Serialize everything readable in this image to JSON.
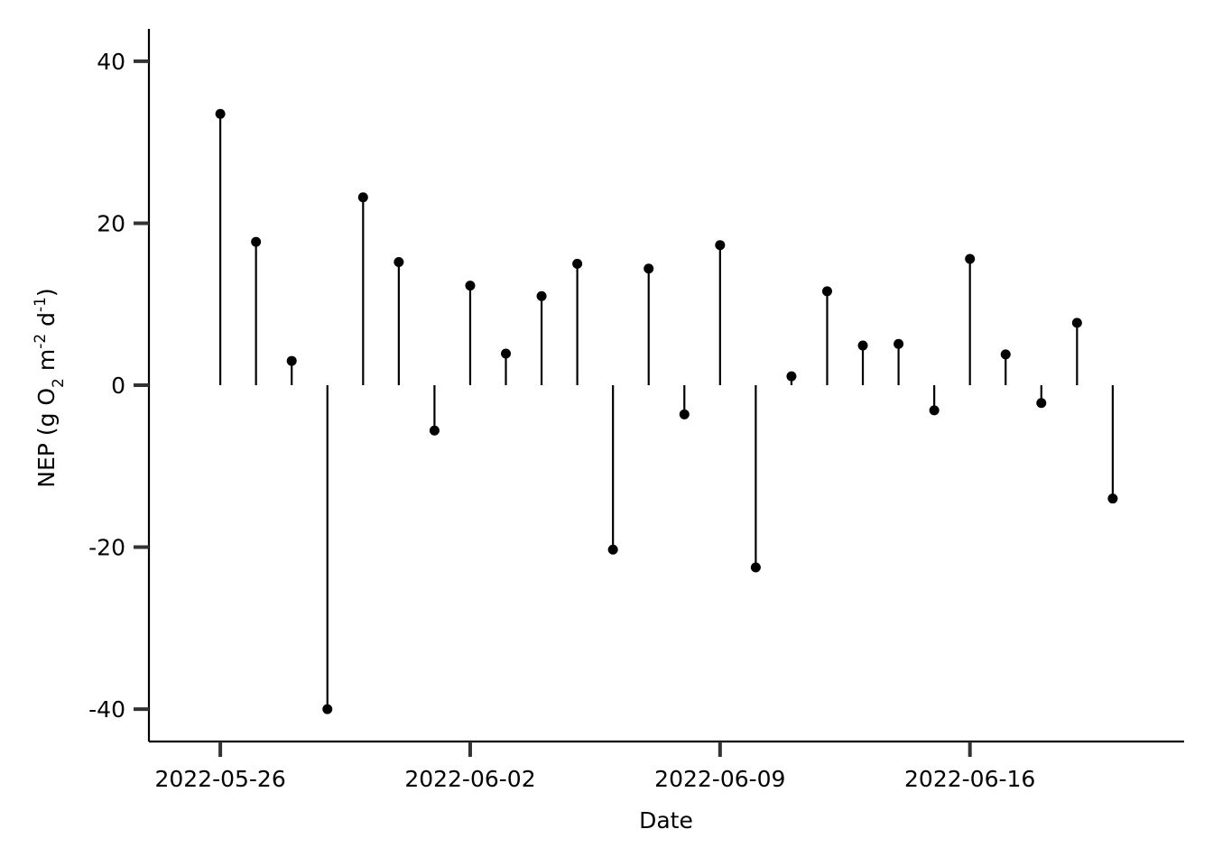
{
  "chart_data": {
    "type": "lollipop",
    "title": "",
    "xlabel": "Date",
    "ylabel": {
      "prefix": "NEP (g O",
      "sub": "2",
      "mid1": " m",
      "sup1": "-2",
      "mid2": " d",
      "sup2": "-1",
      "suffix": ")"
    },
    "xlim": [
      "2022-05-24",
      "2022-06-22"
    ],
    "ylim": [
      -44,
      44
    ],
    "x_ticks": [
      "2022-05-26",
      "2022-06-02",
      "2022-06-09",
      "2022-06-16"
    ],
    "y_ticks": [
      -40,
      -20,
      0,
      20,
      40
    ],
    "grid": false,
    "legend": "none",
    "color": "#000000",
    "points": [
      {
        "x": "2022-05-26",
        "y": 33.5
      },
      {
        "x": "2022-05-27",
        "y": 17.7
      },
      {
        "x": "2022-05-28",
        "y": 3.0
      },
      {
        "x": "2022-05-29",
        "y": -40.0
      },
      {
        "x": "2022-05-30",
        "y": 23.2
      },
      {
        "x": "2022-05-31",
        "y": 15.2
      },
      {
        "x": "2022-06-01",
        "y": -5.6
      },
      {
        "x": "2022-06-02",
        "y": 12.3
      },
      {
        "x": "2022-06-03",
        "y": 3.9
      },
      {
        "x": "2022-06-04",
        "y": 11.0
      },
      {
        "x": "2022-06-05",
        "y": 15.0
      },
      {
        "x": "2022-06-06",
        "y": -20.3
      },
      {
        "x": "2022-06-07",
        "y": 14.4
      },
      {
        "x": "2022-06-08",
        "y": -3.6
      },
      {
        "x": "2022-06-09",
        "y": 17.3
      },
      {
        "x": "2022-06-10",
        "y": -22.5
      },
      {
        "x": "2022-06-11",
        "y": 1.1
      },
      {
        "x": "2022-06-12",
        "y": 11.6
      },
      {
        "x": "2022-06-13",
        "y": 4.9
      },
      {
        "x": "2022-06-14",
        "y": 5.1
      },
      {
        "x": "2022-06-15",
        "y": -3.1
      },
      {
        "x": "2022-06-16",
        "y": 15.6
      },
      {
        "x": "2022-06-17",
        "y": 3.8
      },
      {
        "x": "2022-06-18",
        "y": -2.2
      },
      {
        "x": "2022-06-19",
        "y": 7.7
      },
      {
        "x": "2022-06-20",
        "y": -14.0
      }
    ]
  }
}
